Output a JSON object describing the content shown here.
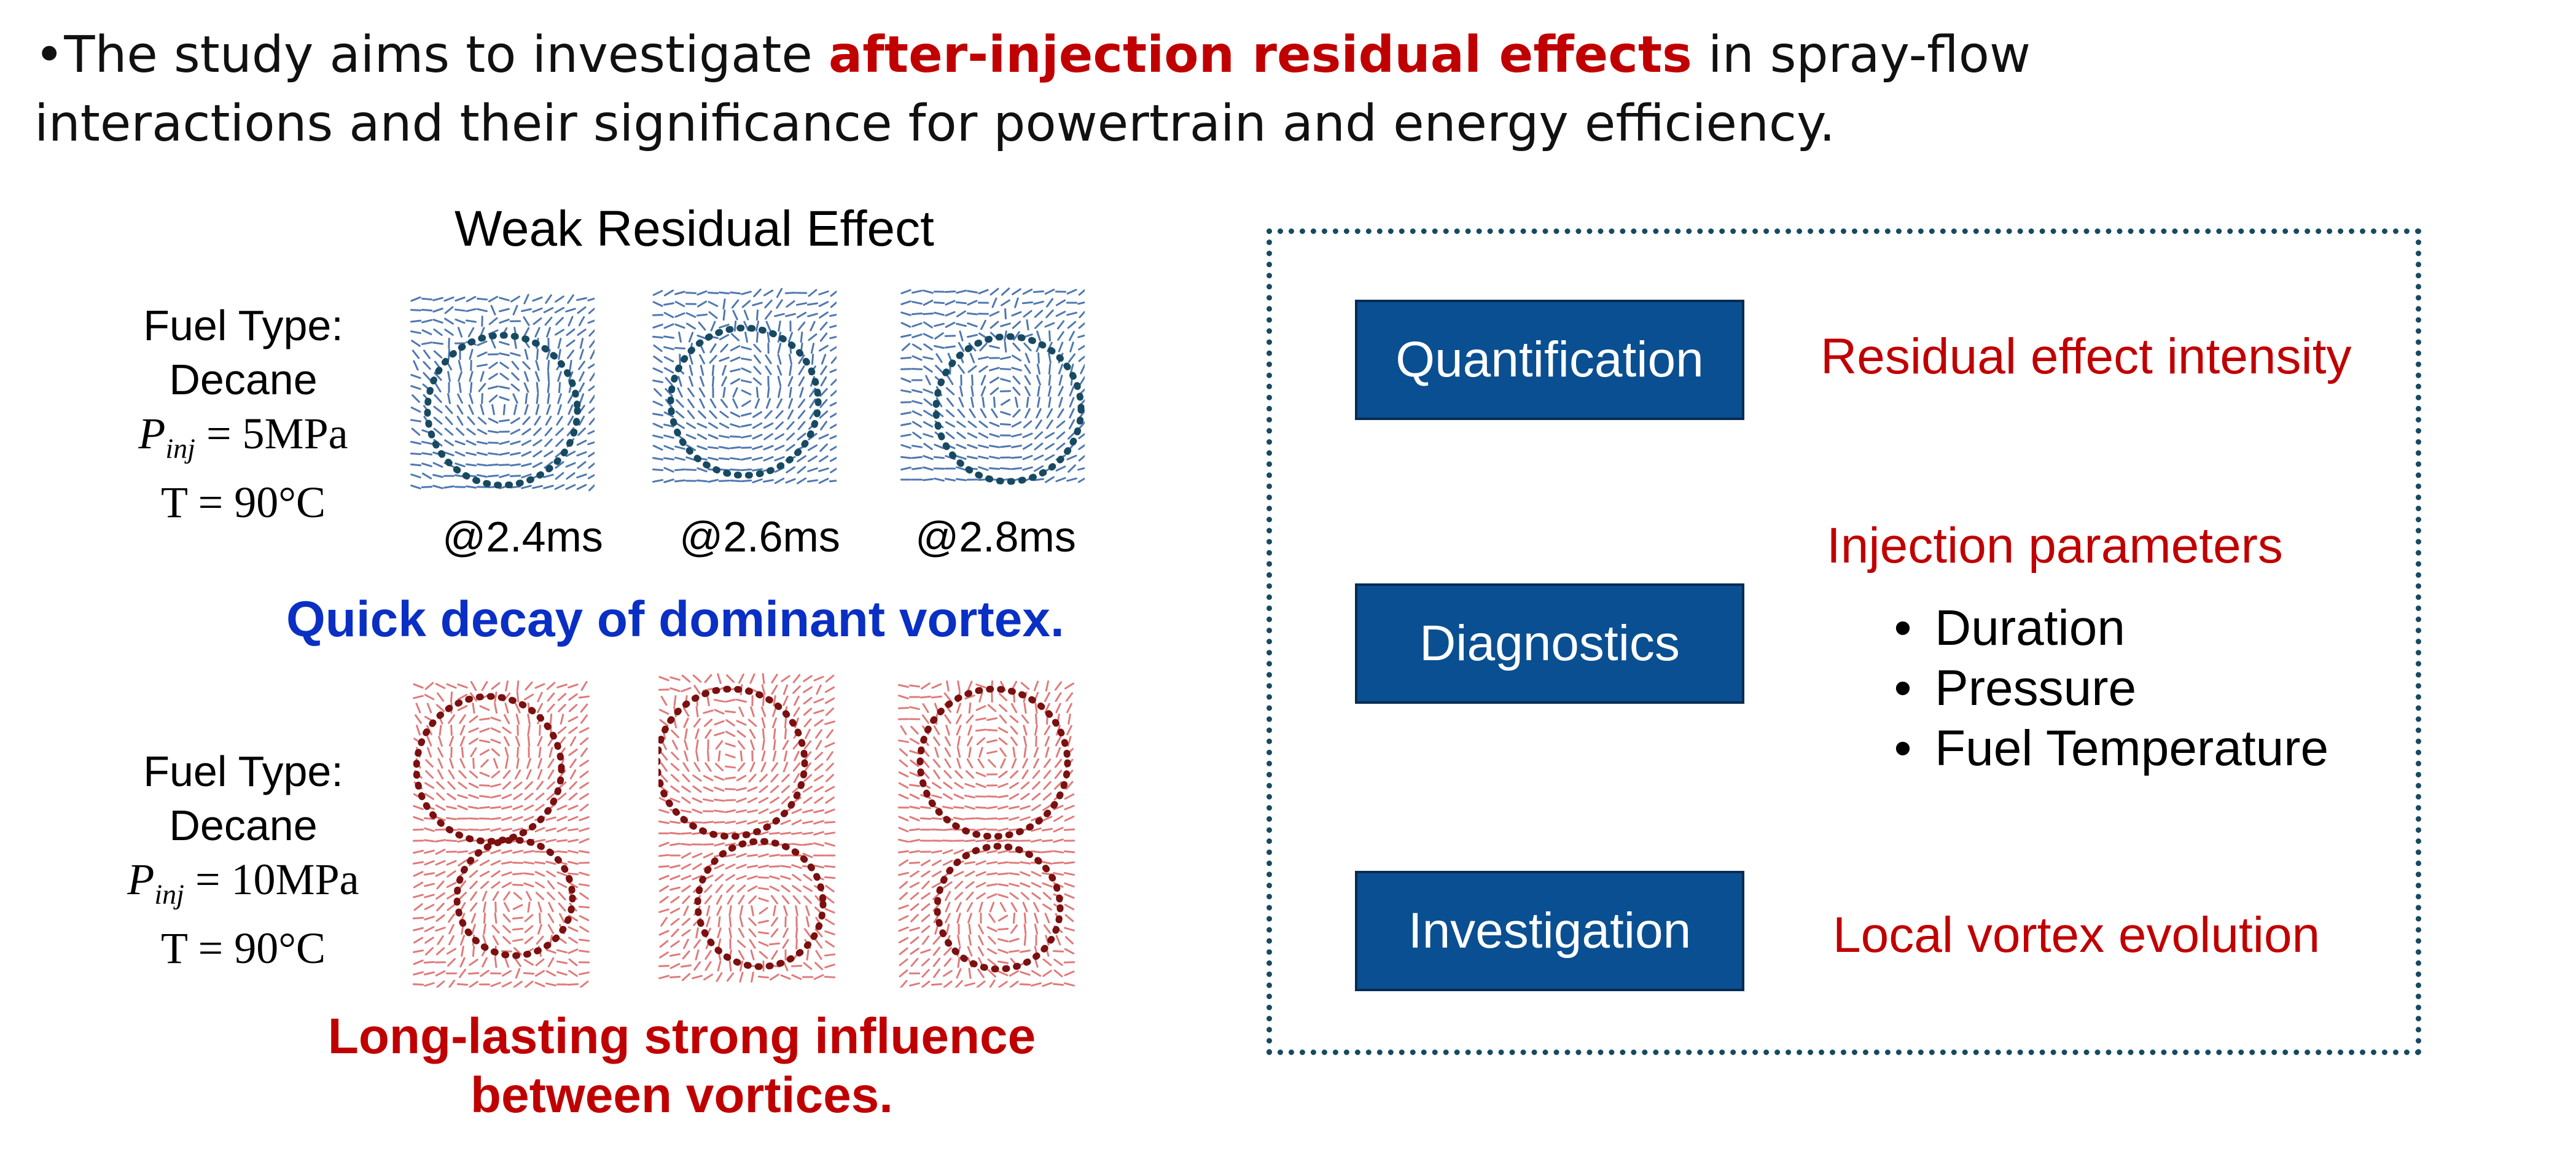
{
  "intro": {
    "bullet": "•",
    "part1": "The study aims to investigate ",
    "highlight": "after-injection residual effects",
    "part2": " in spray-flow interactions and their significance for powertrain and energy efficiency."
  },
  "left_panel": {
    "title": "Weak Residual Effect",
    "top_condition": {
      "fuel_label": "Fuel Type:",
      "fuel": "Decane",
      "pressure_symbol": "P",
      "pressure_subscript": "inj",
      "pressure_value": " = 5MPa",
      "temperature": "T = 90°C"
    },
    "bottom_condition": {
      "fuel_label": "Fuel Type:",
      "fuel": "Decane",
      "pressure_symbol": "P",
      "pressure_subscript": "inj",
      "pressure_value": " = 10MPa",
      "temperature": "T = 90°C"
    },
    "times": [
      "@2.4ms",
      "@2.6ms",
      "@2.8ms"
    ],
    "blue_message": "Quick decay of dominant vortex.",
    "red_message_line1": "Long-lasting strong influence",
    "red_message_line2": "between vortices."
  },
  "right_panel": {
    "steps": [
      {
        "label": "Quantification",
        "note": "Residual effect intensity"
      },
      {
        "label": "Diagnostics",
        "note": "Injection parameters"
      },
      {
        "label": "Investigation",
        "note": "Local vortex evolution"
      }
    ],
    "parameters": [
      "Duration",
      "Pressure",
      "Fuel Temperature"
    ]
  },
  "colors": {
    "highlight_red": "#c00000",
    "blue_message": "#0a2fc4",
    "button_blue": "#0a4f91",
    "frame_dots": "#174a61",
    "weak_vectors": "#4f78b0",
    "strong_vectors": "#e07a7a",
    "weak_circle": "#174a61",
    "strong_circle": "#7a1010"
  }
}
